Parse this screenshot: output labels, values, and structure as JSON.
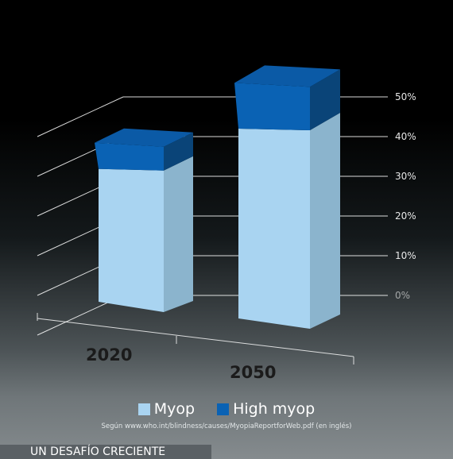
{
  "chart_data": {
    "type": "bar",
    "stacked": true,
    "three_d": true,
    "categories": [
      "2020",
      "2050"
    ],
    "series": [
      {
        "name": "Myop",
        "values": [
          30.9,
          44.8
        ],
        "color": "#a9d4f1"
      },
      {
        "name": "High myop",
        "values": [
          5.2,
          9.8
        ],
        "color": "#0a62b4"
      }
    ],
    "yticks": [
      "0%",
      "10%",
      "20%",
      "30%",
      "40%",
      "50%"
    ],
    "ylim": [
      0,
      50
    ],
    "grid": true,
    "legend_position": "bottom-center"
  },
  "source_note": "Según www.who.int/blindness/causes/MyopiaReportforWeb.pdf (en inglés)",
  "footer_tag": "UN DESAFÍO CRECIENTE",
  "colors": {
    "myop_front": "#a9d4f1",
    "myop_side": "#8bb4cd",
    "high_front": "#0a62b4",
    "high_side": "#0a4478",
    "high_top": "#0b5aa6",
    "grid_line": "#ffffff",
    "category_text": "#1b1b1b"
  }
}
